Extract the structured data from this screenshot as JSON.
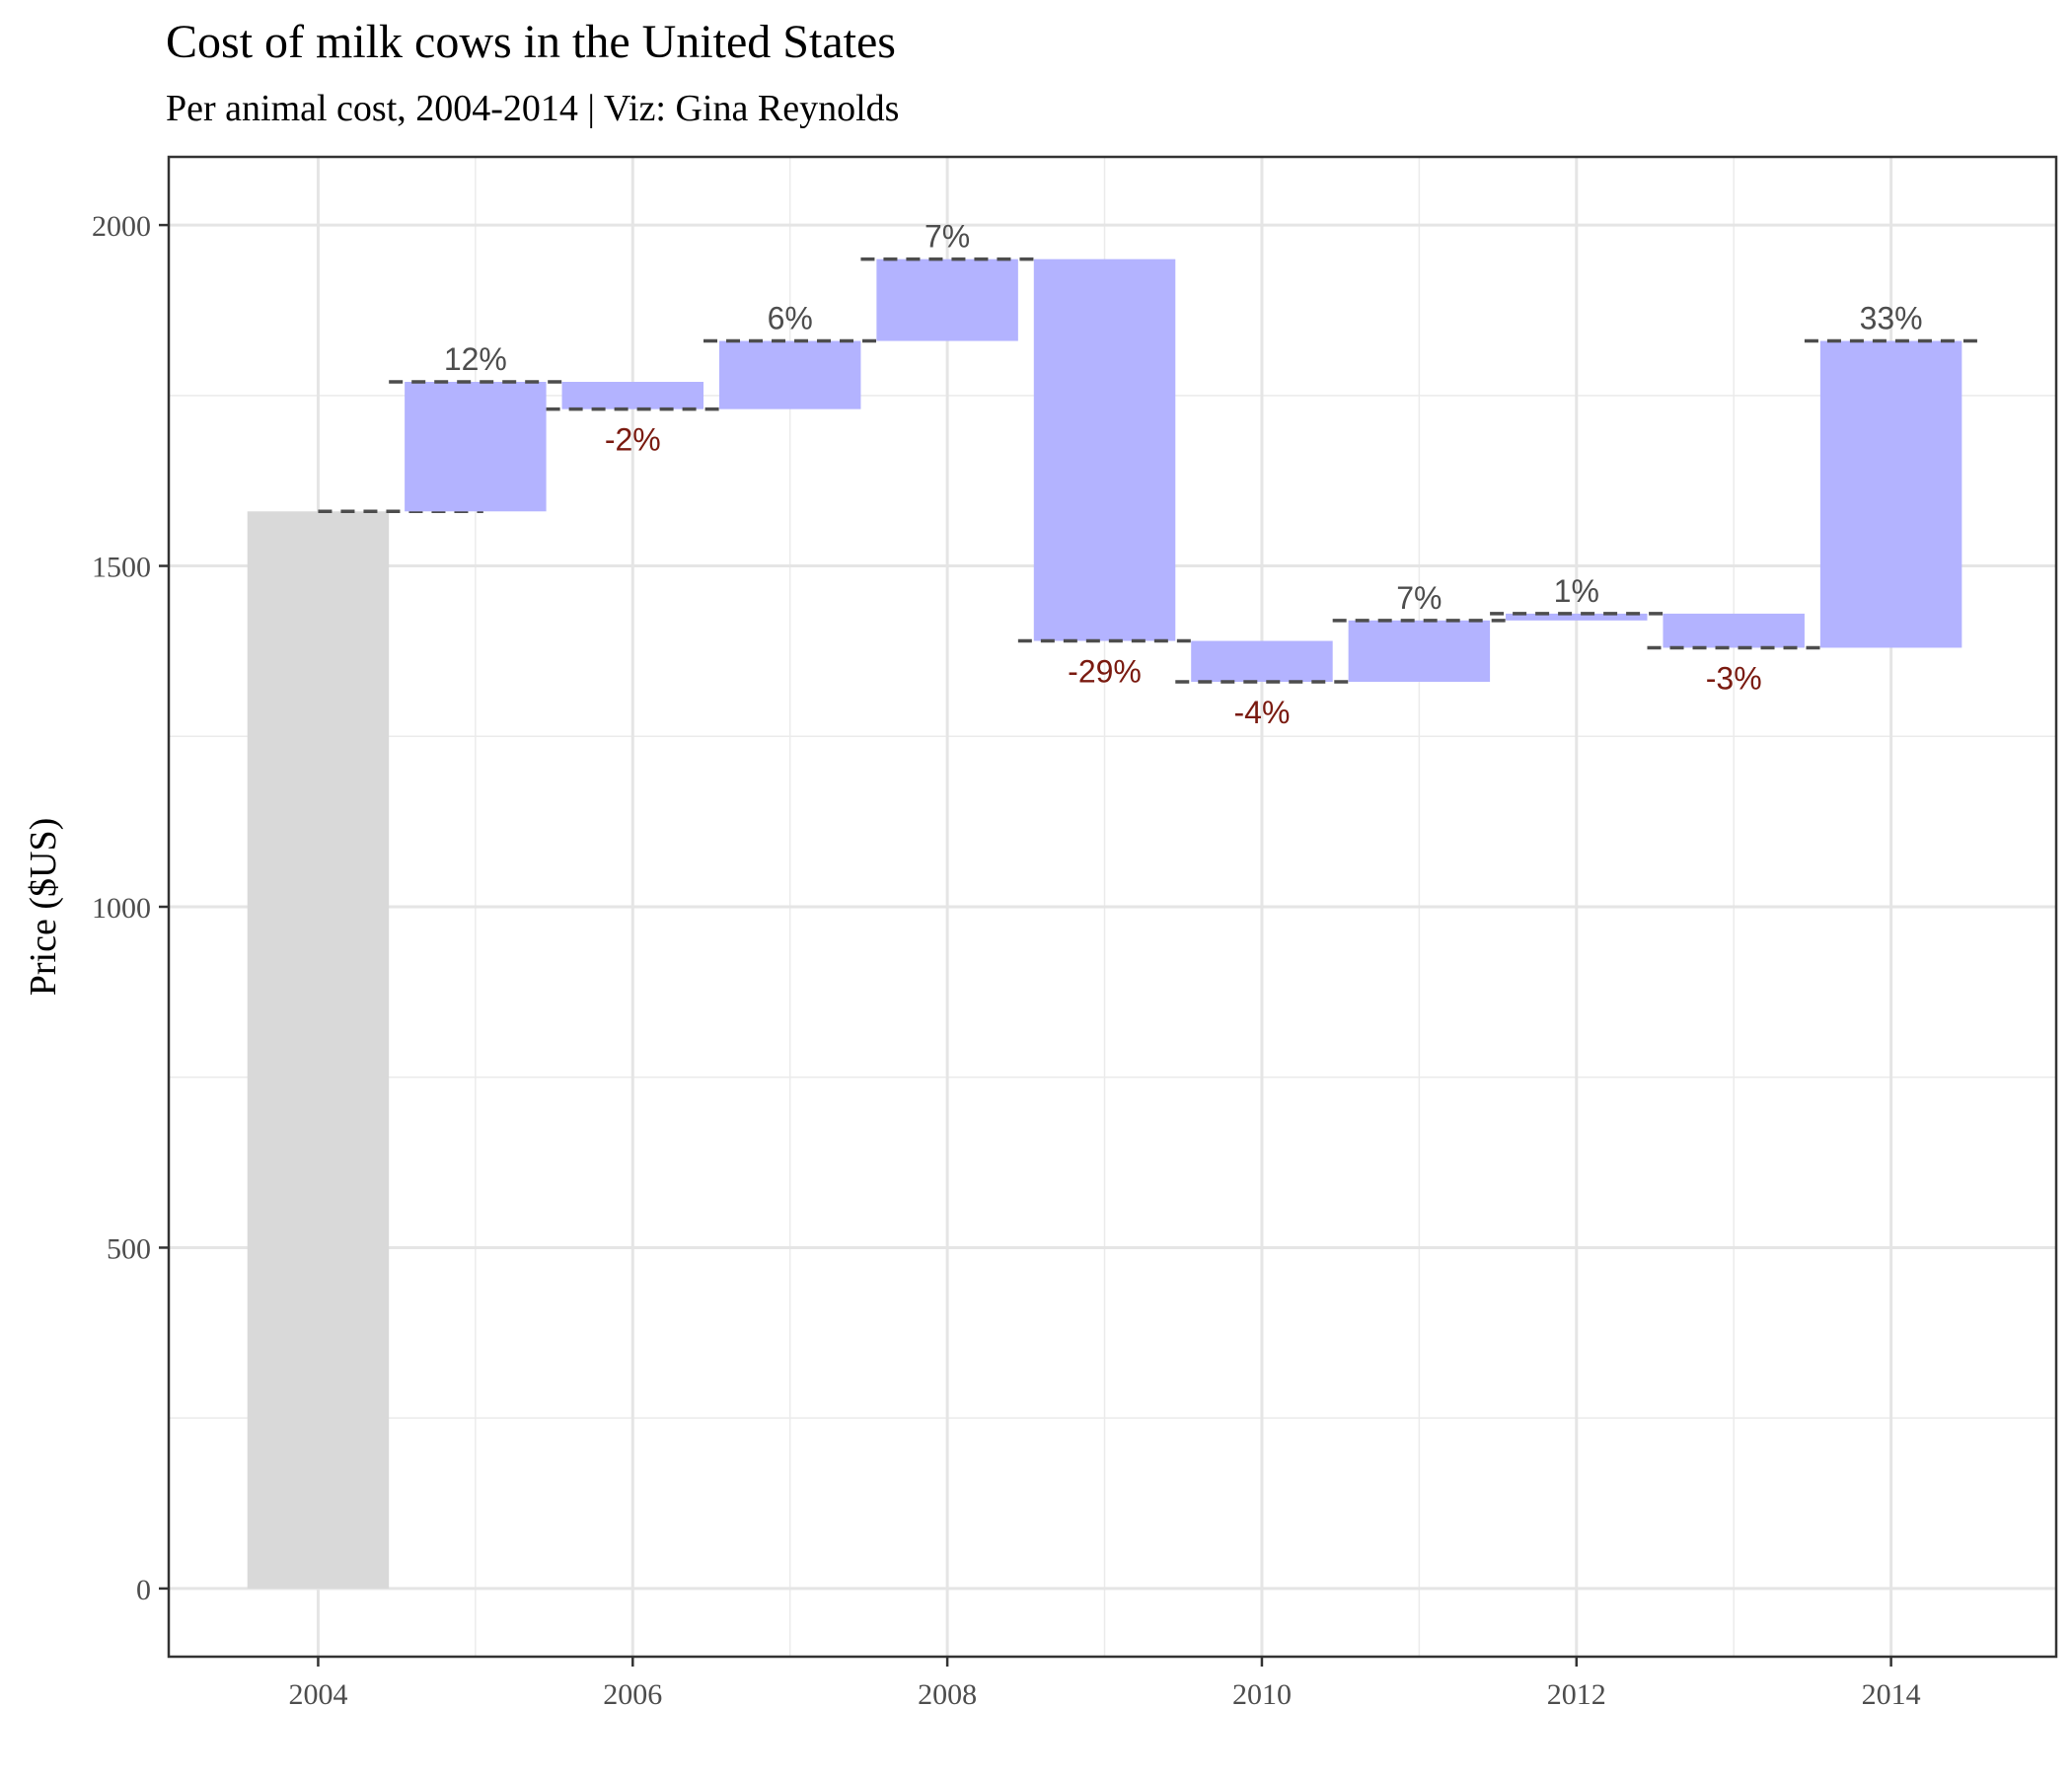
{
  "chart_data": {
    "type": "waterfall",
    "title": "Cost of milk cows in the United States",
    "subtitle": "Per animal cost, 2004-2014 | Viz: Gina Reynolds",
    "xlabel": "",
    "ylabel": "Price ($US)",
    "xlim": [
      2003.05,
      2015.05
    ],
    "ylim": [
      -100,
      2100
    ],
    "x_ticks": [
      2004,
      2006,
      2008,
      2010,
      2012,
      2014
    ],
    "y_ticks": [
      0,
      500,
      1000,
      1500,
      2000
    ],
    "grid": true,
    "start": {
      "year": 2004,
      "value": 1580
    },
    "steps": [
      {
        "year": 2005,
        "from": 1580,
        "to": 1770,
        "label": "12%"
      },
      {
        "year": 2006,
        "from": 1770,
        "to": 1730,
        "label": "-2%"
      },
      {
        "year": 2007,
        "from": 1730,
        "to": 1830,
        "label": "6%"
      },
      {
        "year": 2008,
        "from": 1830,
        "to": 1950,
        "label": "7%"
      },
      {
        "year": 2009,
        "from": 1950,
        "to": 1390,
        "label": "-29%"
      },
      {
        "year": 2010,
        "from": 1390,
        "to": 1330,
        "label": "-4%"
      },
      {
        "year": 2011,
        "from": 1330,
        "to": 1420,
        "label": "7%"
      },
      {
        "year": 2012,
        "from": 1420,
        "to": 1430,
        "label": "1%"
      },
      {
        "year": 2013,
        "from": 1430,
        "to": 1380,
        "label": "-3%"
      },
      {
        "year": 2014,
        "from": 1380,
        "to": 1830,
        "label": "33%"
      }
    ],
    "colors": {
      "start_bar": "#d9d9d9",
      "step_bar": "#b3b3ff",
      "positive_label": "#4d4d4d",
      "negative_label": "#7a1a10",
      "connector": "#4d4d4d"
    }
  }
}
